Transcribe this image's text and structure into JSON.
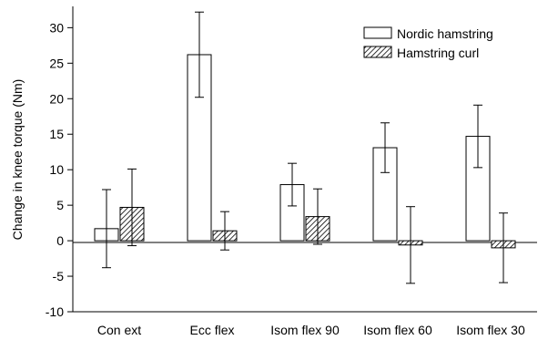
{
  "chart_data": {
    "type": "bar",
    "categories": [
      "Con ext",
      "Ecc flex",
      "Isom flex 90",
      "Isom flex 60",
      "Isom flex 30"
    ],
    "series": [
      {
        "name": "Nordic hamstring",
        "pattern": "open",
        "values": [
          1.7,
          26.2,
          7.9,
          13.1,
          14.7
        ],
        "error": [
          5.5,
          6.0,
          3.0,
          3.5,
          4.4
        ]
      },
      {
        "name": "Hamstring curl",
        "pattern": "hatched",
        "values": [
          4.7,
          1.4,
          3.4,
          -0.6,
          -1.0
        ],
        "error": [
          5.4,
          2.7,
          3.9,
          5.4,
          4.9
        ]
      }
    ],
    "ylabel": "Change in knee torque (Nm)",
    "xlabel": "",
    "title": "",
    "ylim": [
      -10,
      33
    ],
    "yticks": [
      -10,
      -5,
      0,
      5,
      10,
      15,
      20,
      25,
      30
    ],
    "ytick_labels": [
      "-10",
      "-5",
      "0",
      "5",
      "10",
      "15",
      "20",
      "25",
      "30"
    ],
    "legend_position": "top-right",
    "grid": false,
    "colors": {
      "bar_stroke": "#000000",
      "bar_fill": "#ffffff",
      "hatch": "#000000"
    }
  }
}
